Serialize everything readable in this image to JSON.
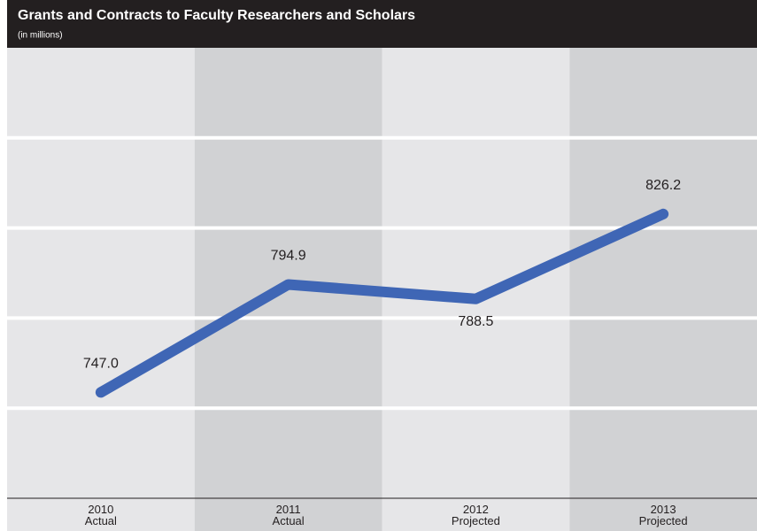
{
  "chart_data": {
    "type": "line",
    "title": "Grants and Contracts to Faculty Researchers and Scholars",
    "subtitle": "(in millions)",
    "categories": [
      "2010 Actual",
      "2011 Actual",
      "2012 Projected",
      "2013 Projected"
    ],
    "values": [
      747.0,
      794.9,
      788.5,
      826.2
    ],
    "value_labels": [
      "747.0",
      "794.9",
      "788.5",
      "826.2"
    ],
    "color": "#3f66b5",
    "ylim": [
      700,
      900
    ],
    "yticks": [
      740,
      780,
      820,
      860
    ],
    "grid": true
  }
}
